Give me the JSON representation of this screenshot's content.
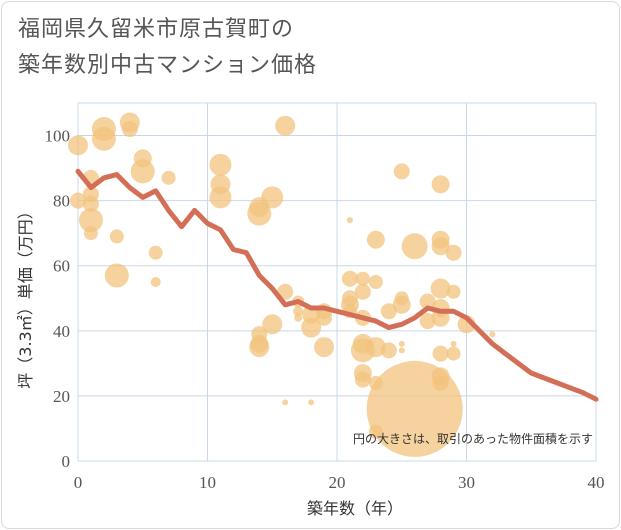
{
  "title_lines": [
    "福岡県久留米市原古賀町の",
    "築年数別中古マンション価格"
  ],
  "note": "円の大きさは、取引のあった物件面積を示す",
  "chart_data": {
    "type": "scatter",
    "title": "福岡県久留米市原古賀町の築年数別中古マンション価格",
    "xlabel": "築年数（年）",
    "ylabel": "坪（3.3㎡）単価（万円）",
    "xlim": [
      0,
      40
    ],
    "ylim": [
      0,
      110
    ],
    "xticks": [
      0,
      10,
      20,
      30,
      40
    ],
    "yticks": [
      0,
      20,
      40,
      60,
      80,
      100
    ],
    "grid": true,
    "colors": {
      "bubble": "#f2c37e",
      "line": "#d46f57",
      "grid": "#c9d8e8"
    },
    "points": [
      {
        "x": 0,
        "y": 97,
        "s": 10
      },
      {
        "x": 0,
        "y": 80,
        "s": 8
      },
      {
        "x": 1,
        "y": 87,
        "s": 8
      },
      {
        "x": 1,
        "y": 82,
        "s": 8
      },
      {
        "x": 1,
        "y": 79,
        "s": 8
      },
      {
        "x": 1,
        "y": 74,
        "s": 12
      },
      {
        "x": 1,
        "y": 70,
        "s": 7
      },
      {
        "x": 2,
        "y": 102,
        "s": 12
      },
      {
        "x": 2,
        "y": 99,
        "s": 12
      },
      {
        "x": 3,
        "y": 69,
        "s": 7
      },
      {
        "x": 3,
        "y": 57,
        "s": 12
      },
      {
        "x": 4,
        "y": 104,
        "s": 10
      },
      {
        "x": 4,
        "y": 102,
        "s": 8
      },
      {
        "x": 5,
        "y": 93,
        "s": 9
      },
      {
        "x": 5,
        "y": 89,
        "s": 12
      },
      {
        "x": 6,
        "y": 64,
        "s": 7
      },
      {
        "x": 6,
        "y": 55,
        "s": 5
      },
      {
        "x": 7,
        "y": 87,
        "s": 7
      },
      {
        "x": 11,
        "y": 91,
        "s": 11
      },
      {
        "x": 11,
        "y": 85,
        "s": 10
      },
      {
        "x": 11,
        "y": 81,
        "s": 11
      },
      {
        "x": 14,
        "y": 78,
        "s": 10
      },
      {
        "x": 14,
        "y": 76,
        "s": 12
      },
      {
        "x": 14,
        "y": 39,
        "s": 8
      },
      {
        "x": 14,
        "y": 36,
        "s": 9
      },
      {
        "x": 14,
        "y": 35,
        "s": 10
      },
      {
        "x": 15,
        "y": 81,
        "s": 11
      },
      {
        "x": 15,
        "y": 42,
        "s": 10
      },
      {
        "x": 16,
        "y": 103,
        "s": 10
      },
      {
        "x": 16,
        "y": 52,
        "s": 8
      },
      {
        "x": 16,
        "y": 18,
        "s": 3
      },
      {
        "x": 17,
        "y": 49,
        "s": 6
      },
      {
        "x": 17,
        "y": 46,
        "s": 5
      },
      {
        "x": 17,
        "y": 44,
        "s": 4
      },
      {
        "x": 18,
        "y": 45,
        "s": 9
      },
      {
        "x": 18,
        "y": 41,
        "s": 10
      },
      {
        "x": 18,
        "y": 18,
        "s": 3
      },
      {
        "x": 19,
        "y": 46,
        "s": 8
      },
      {
        "x": 19,
        "y": 44,
        "s": 8
      },
      {
        "x": 19,
        "y": 35,
        "s": 10
      },
      {
        "x": 21,
        "y": 74,
        "s": 3
      },
      {
        "x": 21,
        "y": 56,
        "s": 8
      },
      {
        "x": 21,
        "y": 50,
        "s": 8
      },
      {
        "x": 21,
        "y": 48,
        "s": 9
      },
      {
        "x": 21,
        "y": 46,
        "s": 7
      },
      {
        "x": 22,
        "y": 56,
        "s": 7
      },
      {
        "x": 22,
        "y": 52,
        "s": 8
      },
      {
        "x": 22,
        "y": 44,
        "s": 8
      },
      {
        "x": 22,
        "y": 36,
        "s": 10
      },
      {
        "x": 22,
        "y": 34,
        "s": 12
      },
      {
        "x": 22,
        "y": 27,
        "s": 9
      },
      {
        "x": 22,
        "y": 25,
        "s": 8
      },
      {
        "x": 23,
        "y": 68,
        "s": 9
      },
      {
        "x": 23,
        "y": 55,
        "s": 7
      },
      {
        "x": 23,
        "y": 35,
        "s": 10
      },
      {
        "x": 23,
        "y": 24,
        "s": 7
      },
      {
        "x": 23,
        "y": 9,
        "s": 7
      },
      {
        "x": 24,
        "y": 46,
        "s": 8
      },
      {
        "x": 24,
        "y": 34,
        "s": 8
      },
      {
        "x": 25,
        "y": 89,
        "s": 8
      },
      {
        "x": 25,
        "y": 50,
        "s": 7
      },
      {
        "x": 25,
        "y": 48,
        "s": 9
      },
      {
        "x": 25,
        "y": 36,
        "s": 3
      },
      {
        "x": 25,
        "y": 34,
        "s": 3
      },
      {
        "x": 26,
        "y": 66,
        "s": 13
      },
      {
        "x": 26,
        "y": 16,
        "s": 48
      },
      {
        "x": 27,
        "y": 49,
        "s": 8
      },
      {
        "x": 27,
        "y": 43,
        "s": 8
      },
      {
        "x": 28,
        "y": 85,
        "s": 9
      },
      {
        "x": 28,
        "y": 68,
        "s": 9
      },
      {
        "x": 28,
        "y": 66,
        "s": 9
      },
      {
        "x": 28,
        "y": 53,
        "s": 10
      },
      {
        "x": 28,
        "y": 47,
        "s": 9
      },
      {
        "x": 28,
        "y": 44,
        "s": 9
      },
      {
        "x": 28,
        "y": 33,
        "s": 8
      },
      {
        "x": 28,
        "y": 26,
        "s": 9
      },
      {
        "x": 28,
        "y": 24,
        "s": 8
      },
      {
        "x": 29,
        "y": 64,
        "s": 8
      },
      {
        "x": 29,
        "y": 52,
        "s": 7
      },
      {
        "x": 29,
        "y": 36,
        "s": 3
      },
      {
        "x": 29,
        "y": 33,
        "s": 7
      },
      {
        "x": 30,
        "y": 42,
        "s": 9
      },
      {
        "x": 32,
        "y": 39,
        "s": 3
      }
    ],
    "trend": {
      "x": [
        0,
        1,
        2,
        3,
        4,
        5,
        6,
        7,
        8,
        9,
        10,
        11,
        12,
        13,
        14,
        15,
        16,
        17,
        18,
        19,
        20,
        21,
        22,
        23,
        24,
        25,
        26,
        27,
        28,
        29,
        30,
        31,
        32,
        33,
        34,
        35,
        36,
        37,
        38,
        39,
        40
      ],
      "y": [
        89,
        84,
        87,
        88,
        84,
        81,
        83,
        77,
        72,
        77,
        73,
        71,
        65,
        64,
        57,
        53,
        48,
        49,
        47,
        47,
        46,
        45,
        44,
        43,
        41,
        42,
        44,
        47,
        46,
        46,
        44,
        40,
        36,
        33,
        30,
        27,
        25.5,
        24,
        22.5,
        21,
        19
      ]
    }
  }
}
